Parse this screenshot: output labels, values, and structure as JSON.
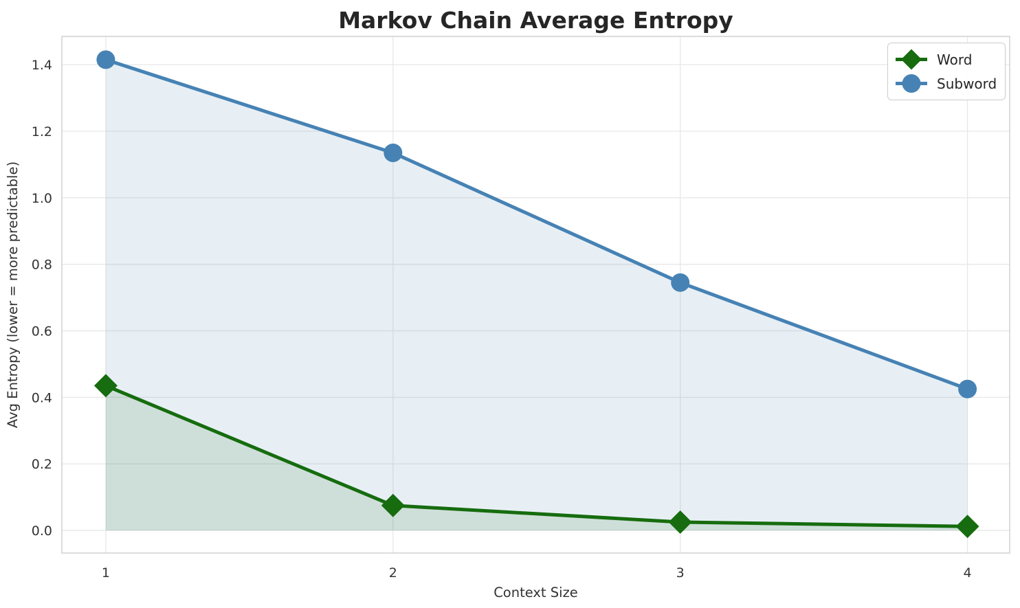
{
  "page_title": "Markov Chain Average Entropy",
  "chart_data": {
    "type": "line",
    "title": "Markov Chain Average Entropy",
    "xlabel": "Context Size",
    "ylabel": "Avg Entropy (lower = more predictable)",
    "x": [
      1,
      2,
      3,
      4
    ],
    "xtick_labels": [
      "1",
      "2",
      "3",
      "4"
    ],
    "yticks": [
      0.0,
      0.2,
      0.4,
      0.6,
      0.8,
      1.0,
      1.2,
      1.4
    ],
    "ytick_labels": [
      "0.0",
      "0.2",
      "0.4",
      "0.6",
      "0.8",
      "1.0",
      "1.2",
      "1.4"
    ],
    "xlim": [
      0.847,
      4.147
    ],
    "ylim": [
      -0.068,
      1.485
    ],
    "grid": true,
    "legend_position": "upper right",
    "fill_baseline": 0,
    "series": [
      {
        "name": "Word",
        "marker": "diamond",
        "color": "#166c0e",
        "fill_alpha": 0.12,
        "values": [
          0.435,
          0.075,
          0.025,
          0.012
        ]
      },
      {
        "name": "Subword",
        "marker": "circle",
        "color": "#4682b4",
        "fill_alpha": 0.13,
        "values": [
          1.415,
          1.135,
          0.745,
          0.425
        ]
      }
    ]
  },
  "legend": {
    "items": [
      {
        "label": "Word"
      },
      {
        "label": "Subword"
      }
    ]
  },
  "colors": {
    "title_text": "#262626",
    "tick_text": "#333333",
    "grid": "#e7e7e7",
    "spine": "#d0d0d0",
    "background": "#ffffff"
  }
}
